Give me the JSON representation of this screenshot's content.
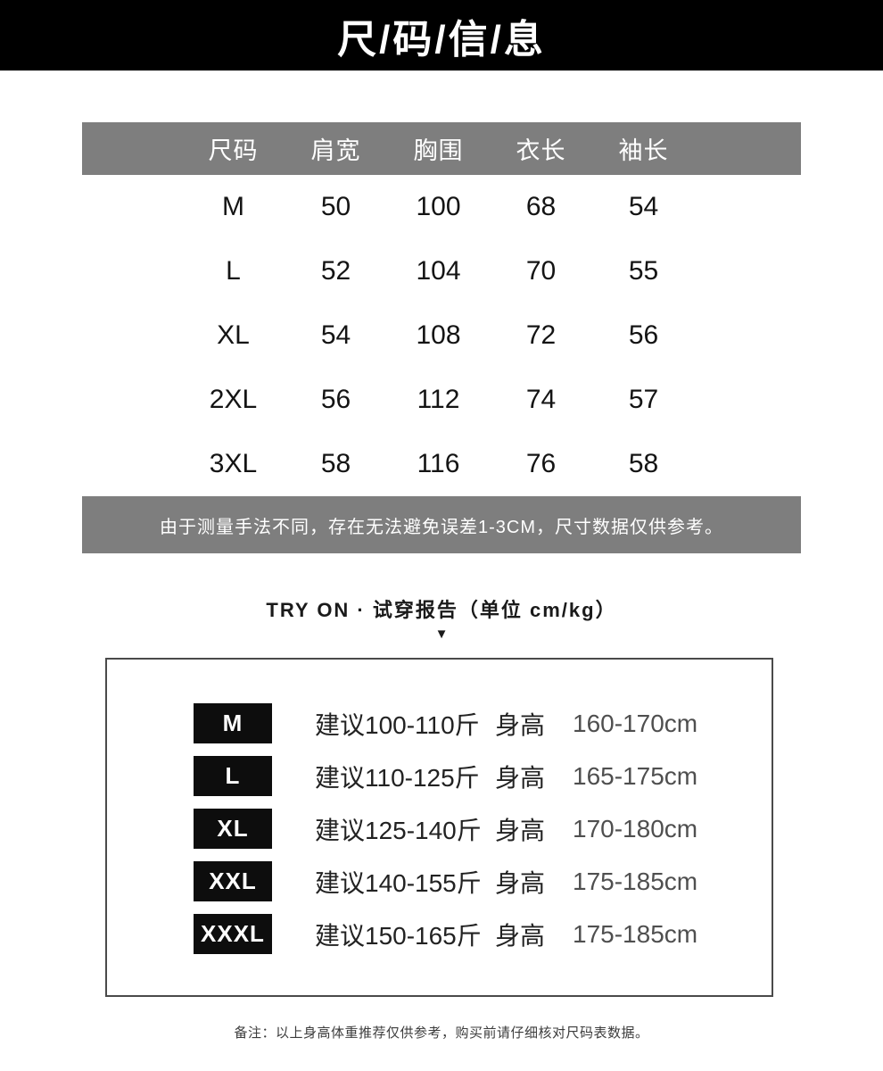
{
  "header": {
    "title": "尺/码/信/息"
  },
  "size_table": {
    "columns": [
      "尺码",
      "肩宽",
      "胸围",
      "衣长",
      "袖长"
    ],
    "rows": [
      {
        "size": "M",
        "values": [
          "50",
          "100",
          "68",
          "54"
        ]
      },
      {
        "size": "L",
        "values": [
          "52",
          "104",
          "70",
          "55"
        ]
      },
      {
        "size": "XL",
        "values": [
          "54",
          "108",
          "72",
          "56"
        ]
      },
      {
        "size": "2XL",
        "values": [
          "56",
          "112",
          "74",
          "57"
        ]
      },
      {
        "size": "3XL",
        "values": [
          "58",
          "116",
          "76",
          "58"
        ]
      }
    ]
  },
  "note": {
    "text": "由于测量手法不同，存在无法避免误差1-3CM，尺寸数据仅供参考。"
  },
  "tryon": {
    "title": "TRY ON · 试穿报告（单位 cm/kg）",
    "arrow": "▼",
    "rows": [
      {
        "size": "M",
        "weight": "建议100-110斤",
        "height_label": "身高",
        "height": "160-170cm"
      },
      {
        "size": "L",
        "weight": "建议110-125斤",
        "height_label": "身高",
        "height": "165-175cm"
      },
      {
        "size": "XL",
        "weight": "建议125-140斤",
        "height_label": "身高",
        "height": "170-180cm"
      },
      {
        "size": "XXL",
        "weight": "建议140-155斤",
        "height_label": "身高",
        "height": "175-185cm"
      },
      {
        "size": "XXXL",
        "weight": "建议150-165斤",
        "height_label": "身高",
        "height": "175-185cm"
      }
    ]
  },
  "footnote": {
    "text": "备注：以上身高体重推荐仅供参考，购买前请仔细核对尺码表数据。"
  },
  "colors": {
    "title_bar_bg": "#000000",
    "gray_bar_bg": "#7e7e7e",
    "badge_bg": "#0d0d0d",
    "body_text": "#141414",
    "height_range_text": "#4f4f4f"
  }
}
